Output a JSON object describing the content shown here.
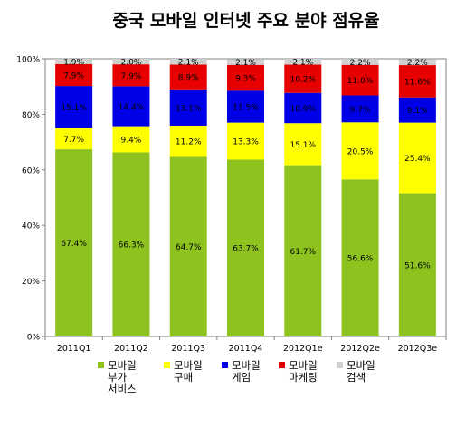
{
  "chart_data": {
    "type": "bar",
    "stacked": true,
    "title": "중국 모바일 인터넷 주요 분야 점유율",
    "categories": [
      "2011Q1",
      "2011Q2",
      "2011Q3",
      "2011Q4",
      "2012Q1e",
      "2012Q2e",
      "2012Q3e"
    ],
    "y_ticks": [
      "0%",
      "20%",
      "40%",
      "60%",
      "80%",
      "100%"
    ],
    "ylim": [
      0,
      100
    ],
    "grid": false,
    "legend_position": "bottom",
    "series": [
      {
        "name": "모바일 부가 서비스",
        "legend_lines": [
          "모바일",
          "부가",
          "서비스"
        ],
        "color": "#8DC21F",
        "values": [
          67.4,
          66.3,
          64.7,
          63.7,
          61.7,
          56.6,
          51.6
        ],
        "labels": [
          "67.4%",
          "66.3%",
          "64.7%",
          "63.7%",
          "61.7%",
          "56.6%",
          "51.6%"
        ]
      },
      {
        "name": "모바일 구매",
        "legend_lines": [
          "모바일",
          "구매"
        ],
        "color": "#FFFF00",
        "values": [
          7.7,
          9.4,
          11.2,
          13.3,
          15.1,
          20.5,
          25.4
        ],
        "labels": [
          "7.7%",
          "9.4%",
          "11.2%",
          "13.3%",
          "15.1%",
          "20.5%",
          "25.4%"
        ]
      },
      {
        "name": "모바일 게임",
        "legend_lines": [
          "모바일",
          "게임"
        ],
        "color": "#0000E6",
        "values": [
          15.1,
          14.4,
          13.1,
          11.5,
          10.9,
          9.7,
          9.1
        ],
        "labels": [
          "15.1%",
          "14.4%",
          "13.1%",
          "11.5%",
          "10.9%",
          "9.7%",
          "9.1%"
        ]
      },
      {
        "name": "모바일 마케팅",
        "legend_lines": [
          "모바일",
          "마케팅"
        ],
        "color": "#E60000",
        "values": [
          7.9,
          7.9,
          8.9,
          9.3,
          10.2,
          11.0,
          11.6
        ],
        "labels": [
          "7.9%",
          "7.9%",
          "8.9%",
          "9.3%",
          "10.2%",
          "11.0%",
          "11.6%"
        ]
      },
      {
        "name": "모바일 검색",
        "legend_lines": [
          "모바일",
          "검색"
        ],
        "color": "#D0D0D0",
        "values": [
          1.9,
          2.0,
          2.1,
          2.1,
          2.1,
          2.2,
          2.2
        ],
        "labels": [
          "1.9%",
          "2.0%",
          "2.1%",
          "2.1%",
          "2.1%",
          "2.2%",
          "2.2%"
        ]
      }
    ]
  }
}
